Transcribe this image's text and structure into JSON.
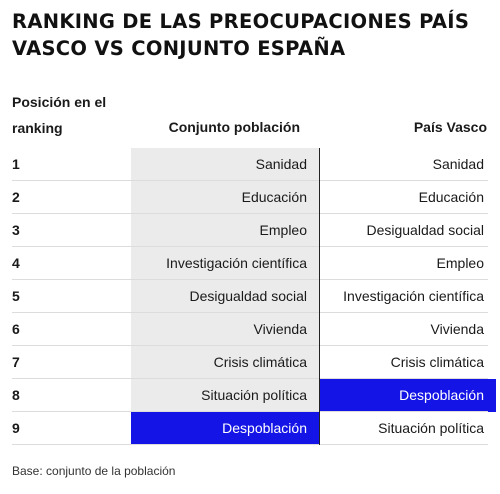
{
  "chart_data": {
    "type": "table",
    "title": "RANKING DE LAS PREOCUPACIONES PAÍS VASCO VS CONJUNTO ESPAÑA",
    "columns": [
      "Posición en el ranking",
      "Conjunto población",
      "País Vasco"
    ],
    "rows": [
      {
        "rank": "1",
        "spain": "Sanidad",
        "pv": "Sanidad"
      },
      {
        "rank": "2",
        "spain": "Educación",
        "pv": "Educación"
      },
      {
        "rank": "3",
        "spain": "Empleo",
        "pv": "Desigualdad social"
      },
      {
        "rank": "4",
        "spain": "Investigación científica",
        "pv": "Empleo"
      },
      {
        "rank": "5",
        "spain": "Desigualdad social",
        "pv": "Investigación científica"
      },
      {
        "rank": "6",
        "spain": "Vivienda",
        "pv": "Vivienda"
      },
      {
        "rank": "7",
        "spain": "Crisis climática",
        "pv": "Crisis climática"
      },
      {
        "rank": "8",
        "spain": "Situación política",
        "pv": "Despoblación"
      },
      {
        "rank": "9",
        "spain": "Despoblación",
        "pv": "Situación política"
      }
    ],
    "highlight": "Despoblación",
    "footnote": "Base: conjunto de la población"
  },
  "colors": {
    "highlight": "#1414e6",
    "spain_column_bg": "#ebebeb",
    "divider": "#222222"
  }
}
